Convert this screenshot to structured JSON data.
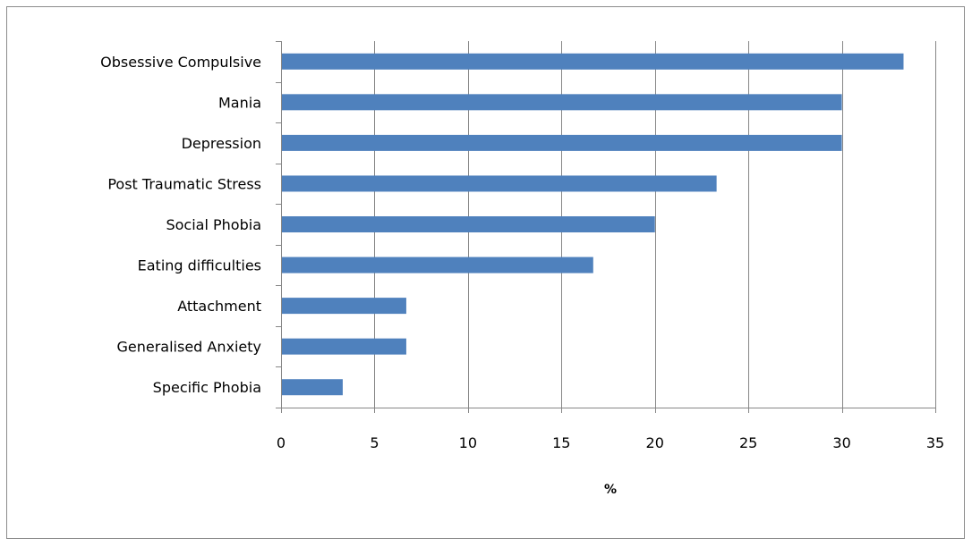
{
  "chart_data": {
    "type": "bar",
    "orientation": "horizontal",
    "categories": [
      "Obsessive Compulsive",
      "Mania",
      "Depression",
      "Post Traumatic Stress",
      "Social Phobia",
      "Eating difficulties",
      "Attachment",
      "Generalised Anxiety",
      "Specific Phobia"
    ],
    "values": [
      33.3,
      30.0,
      30.0,
      23.3,
      20.0,
      16.7,
      6.7,
      6.7,
      3.3
    ],
    "xlabel": "%",
    "ylabel": "",
    "xlim": [
      0,
      35
    ],
    "xticks": [
      0,
      5,
      10,
      15,
      20,
      25,
      30,
      35
    ],
    "grid": "vertical",
    "legend": "none",
    "bar_color": "#4f81bd",
    "grid_color": "#868686"
  }
}
